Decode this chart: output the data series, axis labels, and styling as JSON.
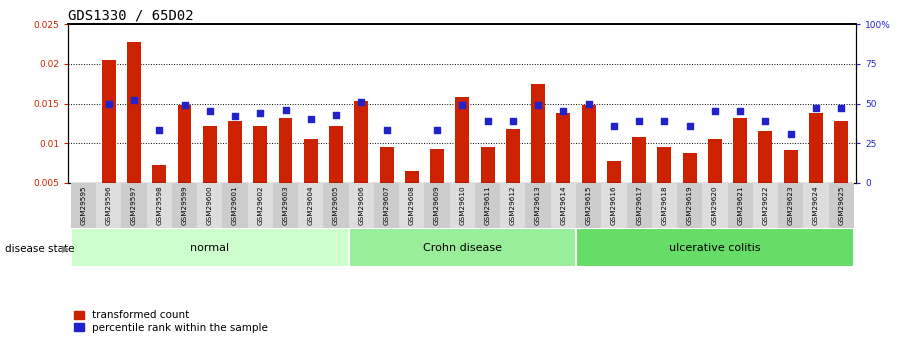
{
  "title": "GDS1330 / 65D02",
  "samples": [
    "GSM29595",
    "GSM29596",
    "GSM29597",
    "GSM29598",
    "GSM29599",
    "GSM29600",
    "GSM29601",
    "GSM29602",
    "GSM29603",
    "GSM29604",
    "GSM29605",
    "GSM29606",
    "GSM29607",
    "GSM29608",
    "GSM29609",
    "GSM29610",
    "GSM29611",
    "GSM29612",
    "GSM29613",
    "GSM29614",
    "GSM29615",
    "GSM29616",
    "GSM29617",
    "GSM29618",
    "GSM29619",
    "GSM29620",
    "GSM29621",
    "GSM29622",
    "GSM29623",
    "GSM29624",
    "GSM29625"
  ],
  "red_values": [
    0.005,
    0.0205,
    0.0228,
    0.0073,
    0.0148,
    0.0122,
    0.0128,
    0.0122,
    0.0132,
    0.0105,
    0.0122,
    0.0153,
    0.0095,
    0.0065,
    0.0093,
    0.0158,
    0.0095,
    0.0118,
    0.0175,
    0.0138,
    0.0148,
    0.0078,
    0.0108,
    0.0095,
    0.0088,
    0.0105,
    0.0132,
    0.0115,
    0.0092,
    0.0138,
    0.0128
  ],
  "blue_pct": [
    null,
    50,
    52,
    33,
    49,
    45,
    42,
    44,
    46,
    40,
    43,
    51,
    33,
    null,
    33,
    49,
    39,
    39,
    49,
    45,
    50,
    36,
    39,
    39,
    36,
    45,
    45,
    39,
    31,
    47,
    47
  ],
  "groups": [
    {
      "label": "normal",
      "start": 0,
      "end": 11,
      "color": "#ccffcc"
    },
    {
      "label": "Crohn disease",
      "start": 11,
      "end": 20,
      "color": "#99ee99"
    },
    {
      "label": "ulcerative colitis",
      "start": 20,
      "end": 31,
      "color": "#66dd66"
    }
  ],
  "ylim_left": [
    0.005,
    0.025
  ],
  "ylim_right": [
    0,
    100
  ],
  "yticks_left": [
    0.005,
    0.01,
    0.015,
    0.02,
    0.025
  ],
  "yticks_right": [
    0,
    25,
    50,
    75,
    100
  ],
  "red_color": "#cc2200",
  "blue_color": "#2222cc",
  "bar_width": 0.55,
  "title_fontsize": 10,
  "tick_fontsize": 6.5,
  "group_colors": [
    "#ccffcc",
    "#99ee99",
    "#66dd66"
  ]
}
